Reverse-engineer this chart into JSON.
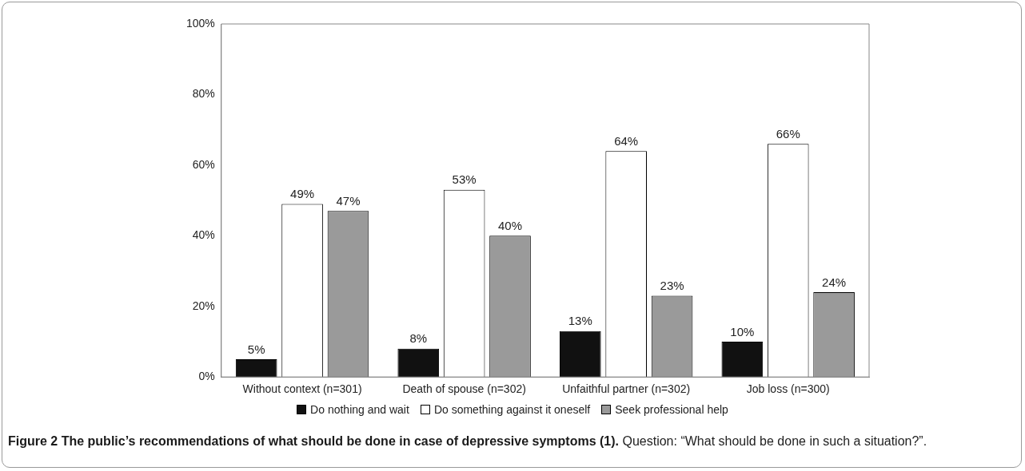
{
  "chart_data": {
    "type": "bar",
    "title": "Figure 2 The public’s recommendations of what should be done in case of depressive symptoms (1).",
    "subtitle": "Question: “What should be done in such a situation?”.",
    "categories": [
      "Without context (n=301)",
      "Death of spouse (n=302)",
      "Unfaithful partner (n=302)",
      "Job loss (n=300)"
    ],
    "series": [
      {
        "name": "Do nothing and wait",
        "color": "#111111",
        "values": [
          5,
          8,
          13,
          10
        ],
        "value_labels": [
          "5%",
          "8%",
          "13%",
          "10%"
        ]
      },
      {
        "name": "Do something against it oneself",
        "color": "#ffffff",
        "values": [
          49,
          53,
          64,
          66
        ],
        "value_labels": [
          "49%",
          "53%",
          "64%",
          "66%"
        ]
      },
      {
        "name": "Seek professional help",
        "color": "#9a9a9a",
        "values": [
          47,
          40,
          23,
          24
        ],
        "value_labels": [
          "47%",
          "40%",
          "23%",
          "24%"
        ]
      }
    ],
    "ylim": [
      0,
      100
    ],
    "yticks": [
      {
        "value": 0,
        "label": "0%"
      },
      {
        "value": 20,
        "label": "20%"
      },
      {
        "value": 40,
        "label": "40%"
      },
      {
        "value": 60,
        "label": "60%"
      },
      {
        "value": 80,
        "label": "80%"
      },
      {
        "value": 100,
        "label": "100%"
      }
    ],
    "grid": false,
    "legend": "bottom"
  }
}
